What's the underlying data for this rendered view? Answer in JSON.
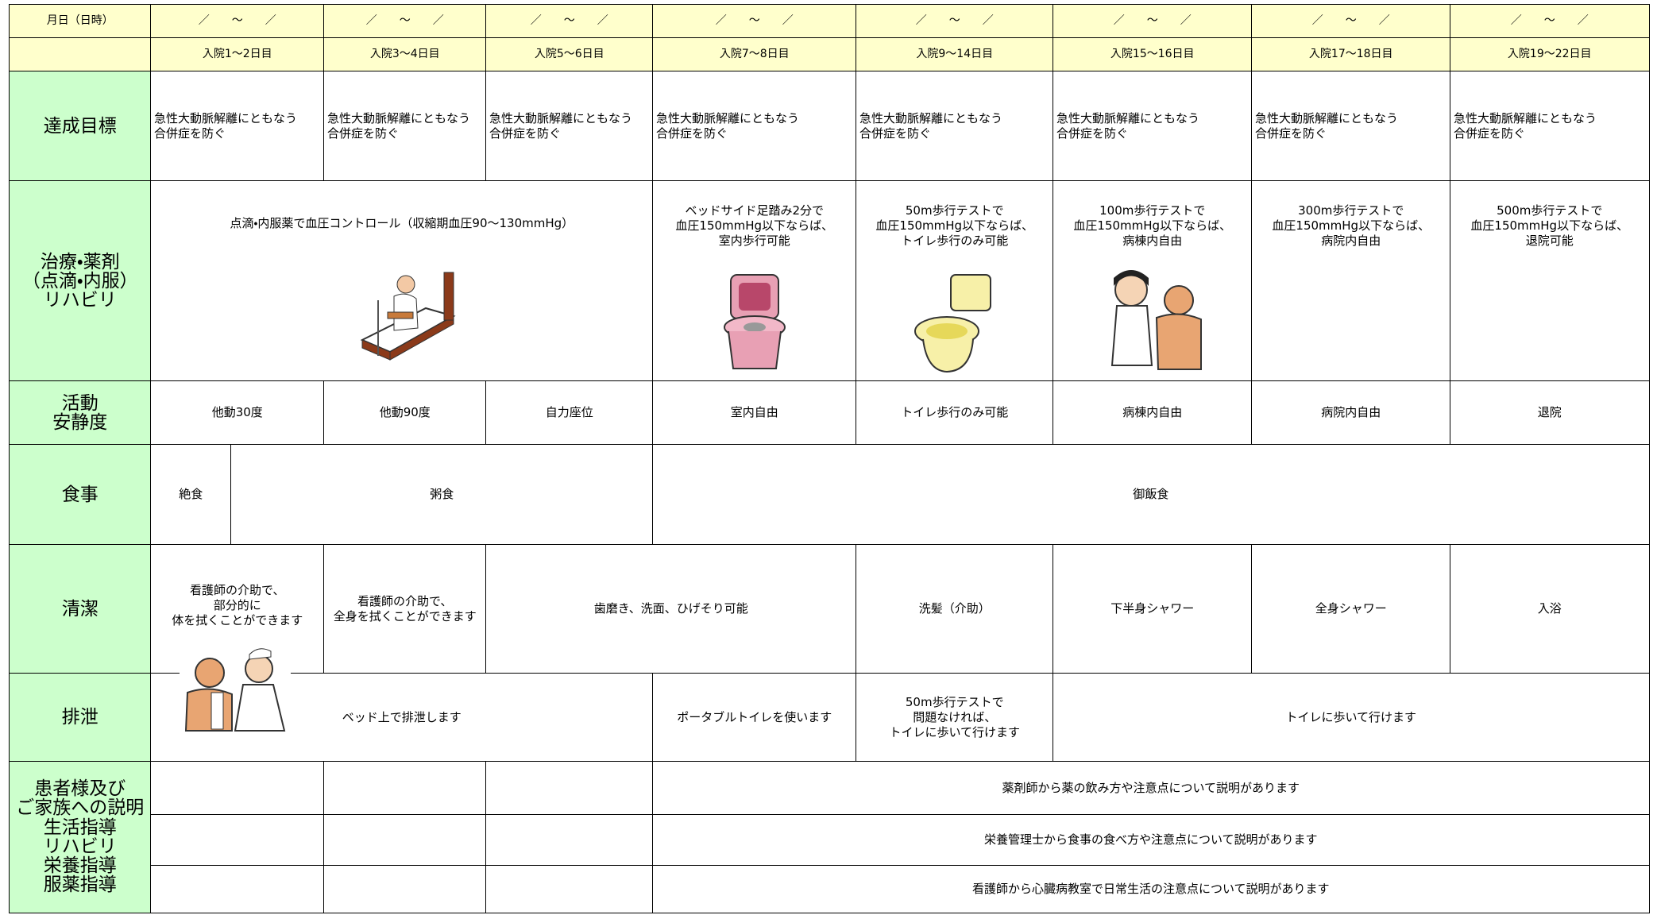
{
  "header_rows": {
    "date_label": "月日（日時）",
    "dates": [
      "／　　～　　／",
      "／　　～　　／",
      "／　　～　　／",
      "／　　～　　／",
      "／　　～　　／",
      "／　　～　　／",
      "／　　～　　／",
      "／　　～　　／"
    ],
    "days": [
      "入院1～2日目",
      "入院3～4日目",
      "入院5～6日目",
      "入院7～8日目",
      "入院9～14日目",
      "入院15～16日目",
      "入院17～18日目",
      "入院19～22日目"
    ]
  },
  "goals": {
    "label": "達成目標",
    "cells": [
      "急性大動脈解離にともなう\n合併症を防ぐ",
      "急性大動脈解離にともなう\n合併症を防ぐ",
      "急性大動脈解離にともなう\n合併症を防ぐ",
      "急性大動脈解離にともなう\n合併症を防ぐ",
      "急性大動脈解離にともなう\n合併症を防ぐ",
      "急性大動脈解離にともなう\n合併症を防ぐ",
      "急性大動脈解離にともなう\n合併症を防ぐ",
      "急性大動脈解離にともなう\n合併症を防ぐ"
    ]
  },
  "treatment": {
    "label": "治療・薬剤\n（点滴・内服）\nリハビリ",
    "cells": [
      "点滴・内服薬で血圧コントロール（収縮期血圧90～130mmHg）",
      "ベッドサイド足踏み2分で\n血圧150mmHg以下ならば、\n室内歩行可能",
      "50m歩行テストで\n血圧150mmHg以下ならば、\nトイレ歩行のみ可能",
      "100m歩行テストで\n血圧150mmHg以下ならば、\n病棟内自由",
      "300m歩行テストで\n血圧150mmHg以下ならば、\n病院内自由",
      "500m歩行テストで\n血圧150mmHg以下ならば、\n退院可能"
    ]
  },
  "activity": {
    "label": "活動\n安静度",
    "cells": [
      "他動30度",
      "他動90度",
      "自力座位",
      "室内自由",
      "トイレ歩行のみ可能",
      "病棟内自由",
      "病院内自由",
      "退院"
    ]
  },
  "meal": {
    "label": "食事",
    "cells": [
      "絶食",
      "粥食",
      "御飯食"
    ]
  },
  "hygiene": {
    "label": "清潔",
    "cells": [
      "看護師の介助で、\n部分的に\n体を拭くことができます",
      "看護師の介助で、\n全身を拭くことができます",
      "歯磨き、洗面、ひげそり可能",
      "洗髪（介助）",
      "下半身シャワー",
      "全身シャワー",
      "入浴"
    ]
  },
  "excretion": {
    "label": "排泄",
    "cells": [
      "ベッド上で排泄します",
      "ポータブルトイレを使います",
      "50m歩行テストで\n問題なければ、\nトイレに歩いて行けます",
      "トイレに歩いて行けます"
    ]
  },
  "explanation": {
    "label": "患者様及び\nご家族への説明\n生活指導\nリハビリ\n栄養指導\n服薬指導",
    "cells": [
      "薬剤師から薬の飲み方や注意点について説明があります",
      "栄養管理士から食事の食べ方や注意点について説明があります",
      "看護師から心臓病教室で日常生活の注意点について説明があります"
    ]
  }
}
